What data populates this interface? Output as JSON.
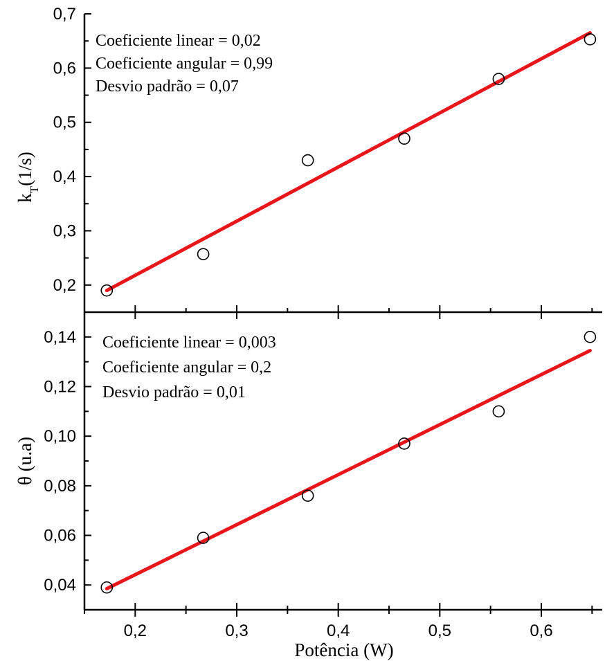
{
  "chart_data": [
    {
      "type": "scatter",
      "panel": "top",
      "title": "",
      "xlabel": "Potência (W)",
      "ylabel": "k",
      "ylabel_sub": "T",
      "ylabel_unit": "(1/s)",
      "xlim": [
        0.15,
        0.66
      ],
      "ylim": [
        0.15,
        0.7
      ],
      "x_ticks": [
        "0,2",
        "0,3",
        "0,4",
        "0,5",
        "0,6"
      ],
      "y_ticks": [
        {
          "value": 0.2,
          "label": "0,2"
        },
        {
          "value": 0.3,
          "label": "0,3"
        },
        {
          "value": 0.4,
          "label": "0,4"
        },
        {
          "value": 0.5,
          "label": "0,5"
        },
        {
          "value": 0.6,
          "label": "0,6"
        },
        {
          "value": 0.7,
          "label": "0,7"
        }
      ],
      "points": [
        {
          "x": 0.172,
          "y": 0.19
        },
        {
          "x": 0.267,
          "y": 0.257
        },
        {
          "x": 0.37,
          "y": 0.43
        },
        {
          "x": 0.465,
          "y": 0.47
        },
        {
          "x": 0.558,
          "y": 0.58
        },
        {
          "x": 0.648,
          "y": 0.653
        }
      ],
      "fit_line": {
        "x": [
          0.172,
          0.648
        ],
        "y": [
          0.19,
          0.665
        ],
        "color": "#e8161b"
      },
      "annotations": [
        "Coeficiente linear = 0,02",
        "Coeficiente angular = 0,99",
        "Desvio padrão = 0,07"
      ]
    },
    {
      "type": "scatter",
      "panel": "bottom",
      "title": "",
      "xlabel": "Potência (W)",
      "ylabel": "θ (u.a)",
      "xlim": [
        0.15,
        0.66
      ],
      "ylim": [
        0.03,
        0.15
      ],
      "x_ticks": [
        {
          "value": 0.2,
          "label": "0,2"
        },
        {
          "value": 0.3,
          "label": "0,3"
        },
        {
          "value": 0.4,
          "label": "0,4"
        },
        {
          "value": 0.5,
          "label": "0,5"
        },
        {
          "value": 0.6,
          "label": "0,6"
        }
      ],
      "y_ticks": [
        {
          "value": 0.04,
          "label": "0,04"
        },
        {
          "value": 0.06,
          "label": "0,06"
        },
        {
          "value": 0.08,
          "label": "0,08"
        },
        {
          "value": 0.1,
          "label": "0,10"
        },
        {
          "value": 0.12,
          "label": "0,12"
        },
        {
          "value": 0.14,
          "label": "0,14"
        }
      ],
      "points": [
        {
          "x": 0.172,
          "y": 0.039
        },
        {
          "x": 0.267,
          "y": 0.059
        },
        {
          "x": 0.37,
          "y": 0.076
        },
        {
          "x": 0.465,
          "y": 0.097
        },
        {
          "x": 0.558,
          "y": 0.11
        },
        {
          "x": 0.648,
          "y": 0.14
        }
      ],
      "fit_line": {
        "x": [
          0.172,
          0.648
        ],
        "y": [
          0.0385,
          0.1345
        ],
        "color": "#e8161b"
      },
      "annotations": [
        "Coeficiente linear = 0,003",
        "Coeficiente angular = 0,2",
        "Desvio padrão = 0,01"
      ]
    }
  ]
}
